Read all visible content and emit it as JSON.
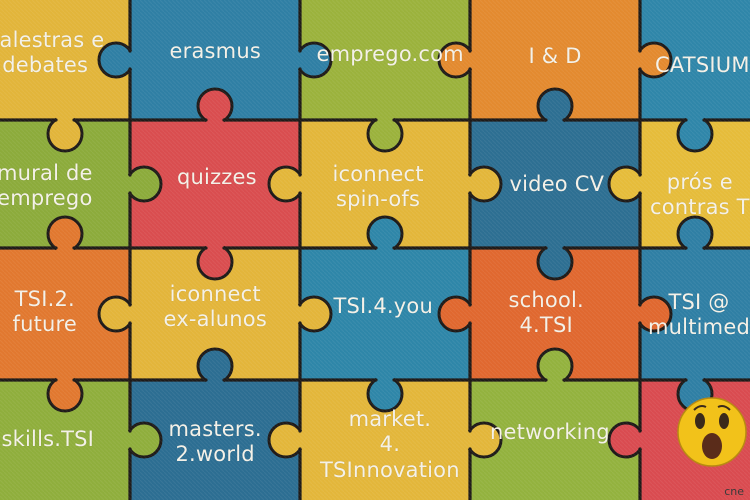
{
  "banner": {
    "tiles": [
      {
        "id": "palestras",
        "text": "palestras e\ndebates",
        "color": "#E2B53A"
      },
      {
        "id": "erasmus",
        "text": "erasmus",
        "color": "#2F7FA4"
      },
      {
        "id": "emprego_com",
        "text": "emprego.com",
        "color": "#9BB23C"
      },
      {
        "id": "i_d",
        "text": "I & D",
        "color": "#E38A2F"
      },
      {
        "id": "catsium",
        "text": "CATSIUM",
        "color": "#2F86A9"
      },
      {
        "id": "mural",
        "text": "mural de\nemprego",
        "color": "#8CAB3B"
      },
      {
        "id": "quizzes",
        "text": "quizzes",
        "color": "#D94D4F"
      },
      {
        "id": "iconnect_spin",
        "text": "iconnect\nspin-ofs",
        "color": "#E3B63A"
      },
      {
        "id": "video_cv",
        "text": "video CV",
        "color": "#2D6F92"
      },
      {
        "id": "pros_contras",
        "text": "prós e\ncontras T",
        "color": "#E6BC3A"
      },
      {
        "id": "tsi2future",
        "text": "TSI.2.\nfuture",
        "color": "#E1782F"
      },
      {
        "id": "iconnect_ex",
        "text": "iconnect\nex-alunos",
        "color": "#E3B53A"
      },
      {
        "id": "tsi4you",
        "text": "TSI.4.you",
        "color": "#2E86A8"
      },
      {
        "id": "school4tsi",
        "text": "school.\n4.TSI",
        "color": "#E0682F"
      },
      {
        "id": "tsi_multimedia",
        "text": "TSI @\nmultimed",
        "color": "#2F7FA4"
      },
      {
        "id": "skills",
        "text": "skills.TSI",
        "color": "#8FAE3C"
      },
      {
        "id": "masters",
        "text": "masters.\n2.world",
        "color": "#2C6E92"
      },
      {
        "id": "market",
        "text": "market.\n4.\nTSInnovation",
        "color": "#E3B63A"
      },
      {
        "id": "networking",
        "text": "networking",
        "color": "#93B23E"
      },
      {
        "id": "emoji_tile",
        "text": "",
        "color": "#D94B50"
      }
    ],
    "footnote": "cne"
  }
}
